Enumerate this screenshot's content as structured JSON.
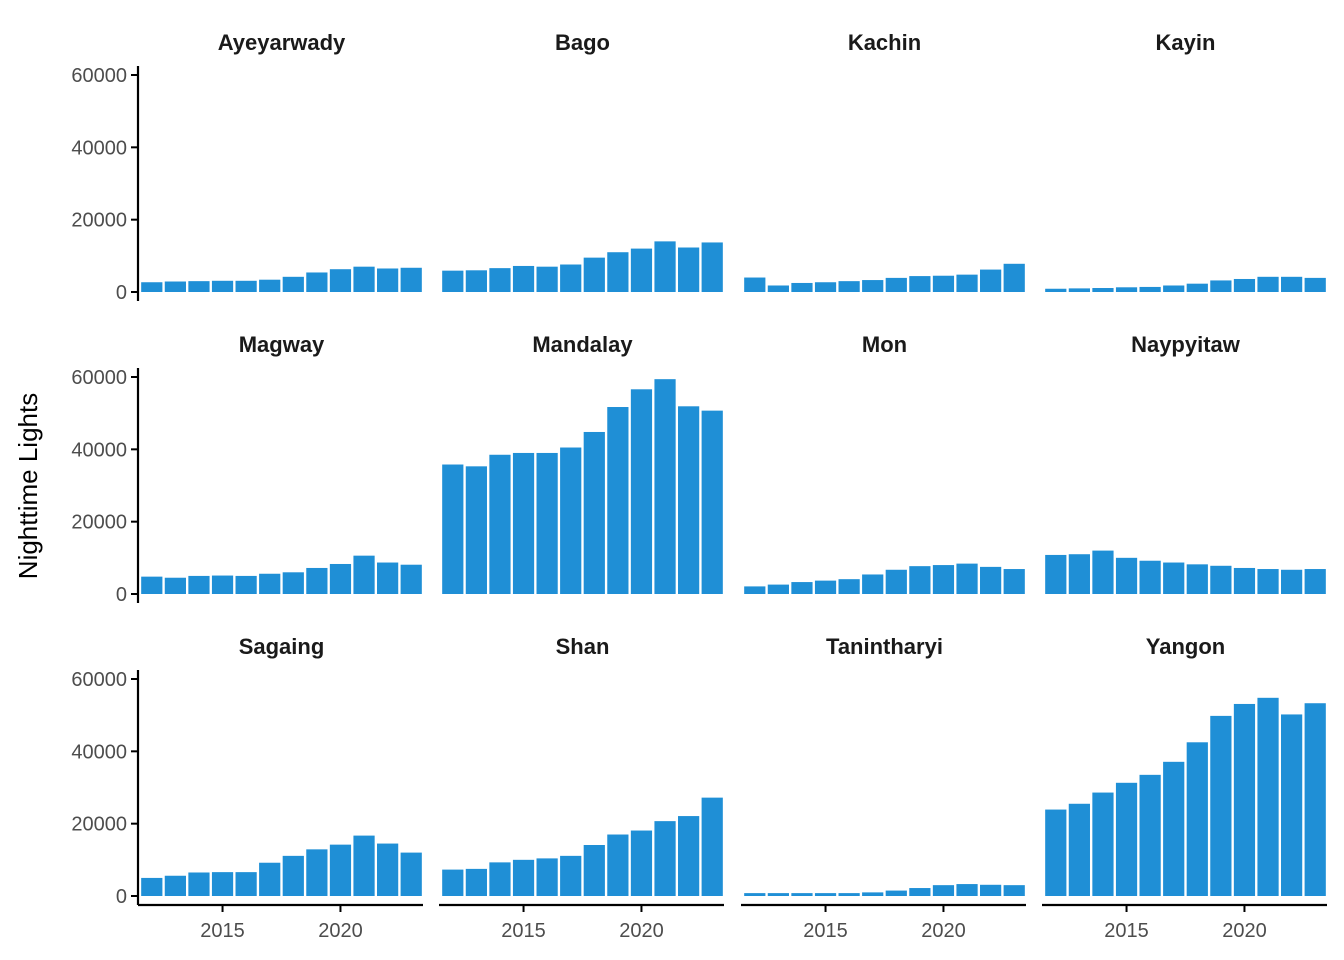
{
  "chart_data": {
    "type": "bar",
    "layout": "facet-grid",
    "ylabel": "Nighttime Lights",
    "xlabel": "",
    "ylim": [
      0,
      60000
    ],
    "yticks": [
      0,
      20000,
      40000,
      60000
    ],
    "xticks": [
      2015,
      2020
    ],
    "x": [
      2012,
      2013,
      2014,
      2015,
      2016,
      2017,
      2018,
      2019,
      2020,
      2021,
      2022,
      2023
    ],
    "bar_color": "#1f8fd6",
    "grid": false,
    "panels": [
      {
        "name": "Ayeyarwady",
        "values": [
          2700,
          2900,
          3000,
          3100,
          3100,
          3400,
          4200,
          5400,
          6300,
          7000,
          6500,
          6700
        ]
      },
      {
        "name": "Bago",
        "values": [
          5900,
          6000,
          6600,
          7200,
          7000,
          7600,
          9500,
          11000,
          12000,
          14000,
          12300,
          13700
        ]
      },
      {
        "name": "Kachin",
        "values": [
          4000,
          1800,
          2500,
          2700,
          3000,
          3300,
          3900,
          4400,
          4500,
          4800,
          6200,
          7800
        ]
      },
      {
        "name": "Kayin",
        "values": [
          900,
          1000,
          1100,
          1300,
          1400,
          1800,
          2300,
          3200,
          3600,
          4200,
          4200,
          3900
        ]
      },
      {
        "name": "Magway",
        "values": [
          4800,
          4500,
          5000,
          5100,
          5000,
          5600,
          6000,
          7200,
          8300,
          10600,
          8700,
          8100
        ]
      },
      {
        "name": "Mandalay",
        "values": [
          35800,
          35300,
          38500,
          39000,
          39000,
          40500,
          44800,
          51700,
          56600,
          59400,
          51900,
          50700
        ]
      },
      {
        "name": "Mon",
        "values": [
          2100,
          2600,
          3300,
          3700,
          4100,
          5400,
          6700,
          7700,
          8000,
          8400,
          7500,
          6900
        ]
      },
      {
        "name": "Naypyitaw",
        "values": [
          10800,
          11000,
          12000,
          10000,
          9200,
          8700,
          8200,
          7800,
          7200,
          6900,
          6700,
          6900
        ]
      },
      {
        "name": "Sagaing",
        "values": [
          5000,
          5600,
          6500,
          6600,
          6600,
          9200,
          11100,
          12900,
          14200,
          16700,
          14500,
          12000
        ]
      },
      {
        "name": "Shan",
        "values": [
          7300,
          7500,
          9300,
          10000,
          10400,
          11100,
          14100,
          17000,
          18100,
          20700,
          22100,
          27200
        ]
      },
      {
        "name": "Tanintharyi",
        "values": [
          800,
          800,
          800,
          800,
          800,
          1000,
          1500,
          2200,
          3000,
          3300,
          3100,
          3000
        ]
      },
      {
        "name": "Yangon",
        "values": [
          23900,
          25500,
          28600,
          31300,
          33500,
          37100,
          42500,
          49800,
          53100,
          54800,
          50200,
          53300
        ]
      }
    ]
  }
}
